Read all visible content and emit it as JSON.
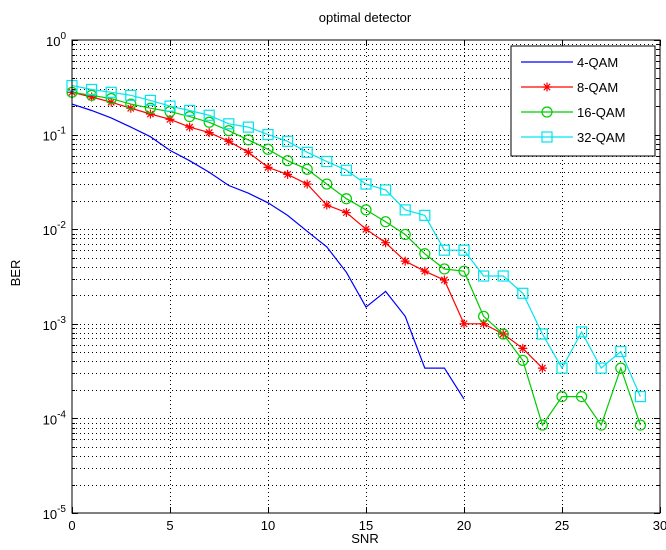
{
  "chart_data": {
    "type": "line",
    "title": "optimal detector",
    "xlabel": "SNR",
    "ylabel": "BER",
    "xlim": [
      0,
      30
    ],
    "ylim": [
      1e-05,
      1
    ],
    "yscale": "log",
    "grid": "dotted, major and minor",
    "legend_position": "top-right",
    "x_ticks": [
      0,
      5,
      10,
      15,
      20,
      25,
      30
    ],
    "x_tick_labels": [
      "0",
      "5",
      "10",
      "15",
      "20",
      "25",
      "30"
    ],
    "y_ticks": [
      {
        "value": 1,
        "mantissa": "10",
        "exp": "0"
      },
      {
        "value": 0.1,
        "mantissa": "10",
        "exp": "-1"
      },
      {
        "value": 0.01,
        "mantissa": "10",
        "exp": "-2"
      },
      {
        "value": 0.001,
        "mantissa": "10",
        "exp": "-3"
      },
      {
        "value": 0.0001,
        "mantissa": "10",
        "exp": "-4"
      },
      {
        "value": 1e-05,
        "mantissa": "10",
        "exp": "-5"
      }
    ],
    "series": [
      {
        "name": "4-QAM",
        "color": "#0000ff",
        "marker": "none",
        "x": [
          0,
          1,
          2,
          3,
          4,
          5,
          6,
          7,
          8,
          9,
          10,
          11,
          12,
          13,
          14,
          15,
          16,
          17,
          18,
          19,
          20
        ],
        "y": [
          0.21,
          0.18,
          0.15,
          0.12,
          0.095,
          0.068,
          0.053,
          0.04,
          0.029,
          0.024,
          0.019,
          0.014,
          0.0095,
          0.0065,
          0.0035,
          0.0015,
          0.0022,
          0.0012,
          0.00034,
          0.00034,
          0.00016
        ]
      },
      {
        "name": "8-QAM",
        "color": "#ff0000",
        "marker": "star",
        "x": [
          0,
          1,
          2,
          3,
          4,
          5,
          6,
          7,
          8,
          9,
          10,
          11,
          12,
          13,
          14,
          15,
          16,
          17,
          18,
          19,
          20,
          21,
          22,
          23,
          24
        ],
        "y": [
          0.28,
          0.25,
          0.22,
          0.19,
          0.165,
          0.145,
          0.12,
          0.105,
          0.085,
          0.065,
          0.045,
          0.038,
          0.03,
          0.018,
          0.015,
          0.01,
          0.0072,
          0.0046,
          0.0036,
          0.0029,
          0.001,
          0.001,
          0.00078,
          0.00055,
          0.00034
        ]
      },
      {
        "name": "16-QAM",
        "color": "#00cc00",
        "marker": "circle",
        "x": [
          0,
          1,
          2,
          3,
          4,
          5,
          6,
          7,
          8,
          9,
          10,
          11,
          12,
          13,
          14,
          15,
          16,
          17,
          18,
          19,
          20,
          21,
          22,
          23,
          24,
          25,
          26,
          27,
          28,
          29
        ],
        "y": [
          0.28,
          0.26,
          0.24,
          0.21,
          0.19,
          0.175,
          0.155,
          0.135,
          0.11,
          0.088,
          0.07,
          0.053,
          0.043,
          0.03,
          0.021,
          0.016,
          0.012,
          0.0088,
          0.0055,
          0.0038,
          0.0036,
          0.0012,
          0.00078,
          0.00041,
          8.5e-05,
          0.00017,
          0.00017,
          8.5e-05,
          0.00034,
          8.5e-05
        ]
      },
      {
        "name": "32-QAM",
        "color": "#00e5ee",
        "marker": "square",
        "x": [
          0,
          1,
          2,
          3,
          4,
          5,
          6,
          7,
          8,
          9,
          10,
          11,
          12,
          13,
          14,
          15,
          16,
          17,
          18,
          19,
          20,
          21,
          22,
          23,
          24,
          25,
          26,
          27,
          28,
          29
        ],
        "y": [
          0.33,
          0.3,
          0.28,
          0.26,
          0.23,
          0.2,
          0.18,
          0.16,
          0.13,
          0.12,
          0.1,
          0.085,
          0.065,
          0.052,
          0.042,
          0.03,
          0.026,
          0.016,
          0.014,
          0.006,
          0.006,
          0.0032,
          0.0032,
          0.0021,
          0.00078,
          0.00034,
          0.00082,
          0.00034,
          0.00051,
          0.00017
        ]
      }
    ]
  }
}
